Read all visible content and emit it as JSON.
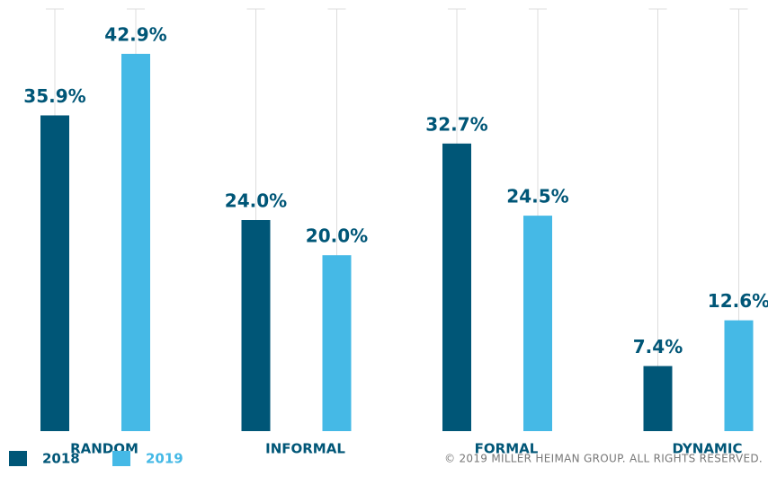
{
  "chart_data": {
    "type": "bar",
    "categories": [
      "RANDOM",
      "INFORMAL",
      "FORMAL",
      "DYNAMIC"
    ],
    "series": [
      {
        "name": "2018",
        "color": "#005677",
        "values": [
          35.9,
          24.0,
          32.7,
          7.4
        ],
        "value_labels": [
          "35.9%",
          "24.0%",
          "32.7%",
          "7.4%"
        ]
      },
      {
        "name": "2019",
        "color": "#45b9e6",
        "values": [
          42.9,
          20.0,
          24.5,
          12.6
        ],
        "value_labels": [
          "42.9%",
          "20.0%",
          "24.5%",
          "12.6%"
        ]
      }
    ],
    "ylim": [
      0,
      48
    ],
    "legend": "bottom-left",
    "footnote": "© 2019 MILLER HEIMAN GROUP. ALL RIGHTS RESERVED."
  }
}
